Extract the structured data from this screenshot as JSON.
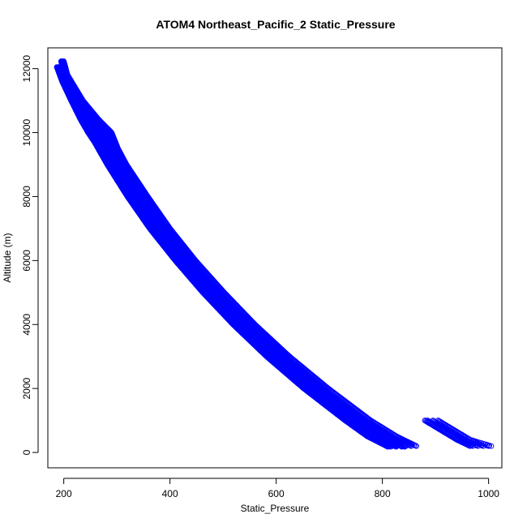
{
  "chart_data": {
    "type": "scatter",
    "title": "ATOM4 Northeast_Pacific_2 Static_Pressure",
    "xlabel": "Static_Pressure",
    "ylabel": "Altitude (m)",
    "xlim": [
      170,
      1025
    ],
    "ylim": [
      -480,
      12650
    ],
    "x_ticks": [
      200,
      400,
      600,
      800,
      1000
    ],
    "y_ticks": [
      0,
      2000,
      4000,
      6000,
      8000,
      10000,
      12000
    ],
    "marker": "open-circle",
    "grid": false,
    "legend": "none",
    "series": [
      {
        "color": "#0000ff",
        "profile_bands": [
          {
            "y": [
              12050,
              11600,
              11000,
              10400,
              10000,
              9700,
              9000,
              8000,
              7000,
              6000,
              5000,
              4000,
              3000,
              2000,
              1000,
              500,
              180
            ],
            "x_low": [
              187,
              197,
              214,
              232,
              246,
              258,
              282,
              320,
              362,
              410,
              462,
              519,
              582,
              652,
              730,
              772,
              810
            ],
            "x_high": [
              193,
              203,
              222,
              248,
              262,
              280,
              306,
              345,
              390,
              438,
              490,
              548,
              612,
              684,
              766,
              811,
              842
            ]
          },
          {
            "y": [
              12230,
              11800,
              11000,
              10400,
              10000,
              9500,
              9000,
              8000,
              7000,
              6000,
              5000,
              4000,
              3000,
              2000,
              1000,
              500,
              200
            ],
            "x_low": [
              195,
              202,
              228,
              256,
              260,
              272,
              288,
              326,
              367,
              415,
              468,
              528,
              592,
              664,
              744,
              792,
              820
            ],
            "x_high": [
              200,
              207,
              236,
              266,
              290,
              302,
              318,
              358,
              400,
              448,
              502,
              560,
              625,
              698,
              778,
              827,
              864
            ]
          },
          {
            "y": [
              1000,
              700,
              400,
              200
            ],
            "x_low": [
              880,
              910,
              940,
              965
            ],
            "x_high": [
              905,
              935,
              965,
              1005
            ]
          }
        ]
      }
    ]
  }
}
